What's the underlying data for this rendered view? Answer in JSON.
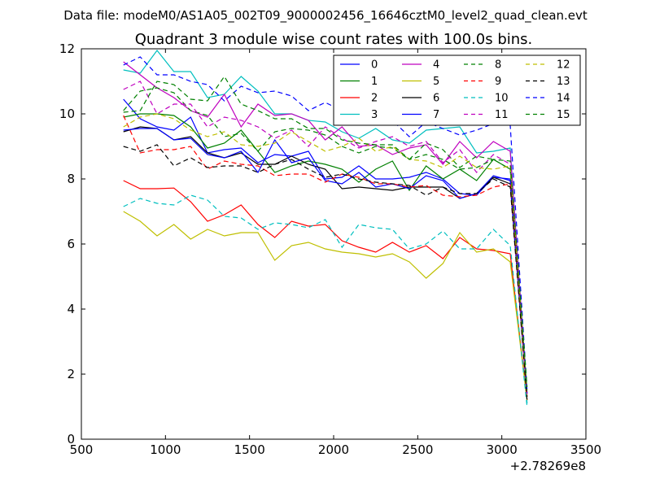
{
  "suptitle": "Data file: modeM0/AS1A05_002T09_9000002456_16646cztM0_level2_quad_clean.evt",
  "chart_data": {
    "type": "line",
    "title": "Quadrant 3 module wise count rates with 100.0s bins.",
    "xlabel": "",
    "ylabel": "",
    "x_offset_label": "+2.78269e8",
    "xlim": [
      500,
      3500
    ],
    "ylim": [
      0,
      12
    ],
    "x_ticks": [
      500,
      1000,
      1500,
      2000,
      2500,
      3000,
      3500
    ],
    "y_ticks": [
      0,
      2,
      4,
      6,
      8,
      10,
      12
    ],
    "grid": false,
    "legend_position": "top-right",
    "legend_columns": 4,
    "x": [
      750,
      850,
      950,
      1050,
      1150,
      1250,
      1350,
      1450,
      1550,
      1650,
      1750,
      1850,
      1950,
      2050,
      2150,
      2250,
      2350,
      2450,
      2550,
      2650,
      2750,
      2850,
      2950,
      3050,
      3150
    ],
    "series": [
      {
        "name": "0",
        "color": "#0000ff",
        "dash": "solid",
        "values": [
          10.45,
          9.85,
          9.6,
          9.5,
          9.9,
          8.8,
          8.9,
          8.95,
          8.5,
          8.75,
          8.7,
          8.85,
          8.0,
          8.05,
          8.4,
          8.0,
          8.0,
          8.05,
          8.2,
          8.0,
          7.55,
          7.5,
          8.05,
          8.0,
          1.3
        ]
      },
      {
        "name": "1",
        "color": "#008000",
        "dash": "solid",
        "values": [
          9.9,
          10.0,
          10.0,
          9.95,
          9.6,
          8.95,
          9.1,
          9.5,
          8.85,
          8.2,
          8.4,
          8.55,
          8.45,
          8.3,
          7.9,
          8.3,
          8.55,
          7.65,
          8.4,
          8.0,
          8.3,
          7.95,
          8.6,
          8.3,
          1.4
        ]
      },
      {
        "name": "2",
        "color": "#ff0000",
        "dash": "solid",
        "values": [
          7.95,
          7.7,
          7.7,
          7.72,
          7.3,
          6.7,
          6.9,
          7.2,
          6.6,
          6.2,
          6.7,
          6.55,
          6.6,
          6.1,
          5.9,
          5.75,
          6.05,
          5.75,
          5.95,
          5.55,
          6.2,
          5.85,
          5.8,
          5.7,
          1.2
        ]
      },
      {
        "name": "3",
        "color": "#00bfbf",
        "dash": "solid",
        "values": [
          11.35,
          11.25,
          11.95,
          11.3,
          11.3,
          10.5,
          10.6,
          11.15,
          10.7,
          10.0,
          10.0,
          9.8,
          9.75,
          9.45,
          9.25,
          9.55,
          9.2,
          9.1,
          9.5,
          9.55,
          9.6,
          8.8,
          8.85,
          8.95,
          1.1
        ]
      },
      {
        "name": "4",
        "color": "#bf00bf",
        "dash": "solid",
        "values": [
          11.6,
          11.2,
          10.8,
          10.5,
          10.1,
          9.9,
          10.6,
          9.6,
          10.3,
          9.95,
          10.0,
          9.8,
          9.2,
          9.6,
          9.0,
          9.05,
          8.75,
          8.95,
          9.05,
          8.45,
          9.15,
          8.65,
          9.15,
          8.85,
          1.4
        ]
      },
      {
        "name": "5",
        "color": "#bfbf00",
        "dash": "solid",
        "values": [
          7.0,
          6.7,
          6.25,
          6.6,
          6.15,
          6.45,
          6.25,
          6.35,
          6.35,
          5.5,
          5.95,
          6.05,
          5.85,
          5.75,
          5.7,
          5.6,
          5.7,
          5.45,
          4.95,
          5.4,
          6.35,
          5.75,
          5.85,
          5.45,
          1.2
        ]
      },
      {
        "name": "6",
        "color": "#000000",
        "dash": "solid",
        "values": [
          9.45,
          9.6,
          9.55,
          9.2,
          9.3,
          8.8,
          8.65,
          8.8,
          8.45,
          8.45,
          8.7,
          8.45,
          8.3,
          7.7,
          7.75,
          7.7,
          7.65,
          7.75,
          7.75,
          7.75,
          7.4,
          7.55,
          8.05,
          7.85,
          1.3
        ]
      },
      {
        "name": "7",
        "color": "#0000ff",
        "dash": "solid",
        "values": [
          9.5,
          9.55,
          9.55,
          9.2,
          9.25,
          8.75,
          8.65,
          8.85,
          8.2,
          9.2,
          8.5,
          8.65,
          7.95,
          7.85,
          8.2,
          7.75,
          7.85,
          7.7,
          8.1,
          7.95,
          7.4,
          7.55,
          8.1,
          7.95,
          1.4
        ]
      },
      {
        "name": "8",
        "color": "#008000",
        "dash": "dashed",
        "values": [
          10.1,
          10.7,
          10.8,
          10.65,
          10.1,
          9.95,
          9.3,
          9.4,
          8.85,
          9.45,
          9.55,
          9.5,
          9.35,
          9.0,
          8.8,
          9.0,
          8.95,
          8.6,
          9.1,
          8.9,
          8.35,
          8.7,
          8.6,
          8.3,
          1.5
        ]
      },
      {
        "name": "9",
        "color": "#ff0000",
        "dash": "dashed",
        "values": [
          9.95,
          8.8,
          8.9,
          8.9,
          9.0,
          8.3,
          8.55,
          8.45,
          8.4,
          8.1,
          8.15,
          8.15,
          7.9,
          8.15,
          8.05,
          7.85,
          7.85,
          7.75,
          7.8,
          7.5,
          7.45,
          7.5,
          7.75,
          7.85,
          1.3
        ]
      },
      {
        "name": "10",
        "color": "#00bfbf",
        "dash": "dashed",
        "values": [
          7.15,
          7.4,
          7.25,
          7.2,
          7.5,
          7.35,
          6.85,
          6.8,
          6.45,
          6.65,
          6.6,
          6.5,
          6.75,
          5.9,
          6.6,
          6.5,
          6.45,
          5.85,
          6.0,
          6.4,
          5.85,
          5.85,
          6.45,
          5.95,
          1.0
        ]
      },
      {
        "name": "11",
        "color": "#bf00bf",
        "dash": "dashed",
        "values": [
          10.75,
          11.0,
          10.0,
          10.3,
          10.3,
          9.6,
          9.9,
          9.8,
          9.6,
          9.25,
          9.5,
          9.0,
          9.6,
          9.25,
          8.95,
          9.15,
          9.3,
          9.0,
          9.15,
          8.5,
          8.9,
          8.2,
          8.75,
          8.45,
          1.3
        ]
      },
      {
        "name": "12",
        "color": "#bfbf00",
        "dash": "dashed",
        "values": [
          9.6,
          9.9,
          10.0,
          9.85,
          9.5,
          9.3,
          9.45,
          9.05,
          9.0,
          9.1,
          9.45,
          9.15,
          8.85,
          9.0,
          9.25,
          8.85,
          9.0,
          8.6,
          8.55,
          8.35,
          8.7,
          8.35,
          8.3,
          8.4,
          1.3
        ]
      },
      {
        "name": "13",
        "color": "#000000",
        "dash": "dashed",
        "values": [
          9.0,
          8.85,
          9.05,
          8.4,
          8.65,
          8.35,
          8.4,
          8.4,
          8.2,
          8.45,
          8.6,
          8.3,
          8.05,
          8.15,
          8.0,
          7.9,
          7.85,
          7.8,
          7.5,
          7.75,
          7.55,
          7.55,
          8.0,
          7.75,
          1.2
        ]
      },
      {
        "name": "14",
        "color": "#0000ff",
        "dash": "dashed",
        "values": [
          11.5,
          11.75,
          11.2,
          11.2,
          11.0,
          10.9,
          10.4,
          10.85,
          10.65,
          10.7,
          10.55,
          10.1,
          10.35,
          10.1,
          9.85,
          9.7,
          9.8,
          9.3,
          9.75,
          9.55,
          9.35,
          9.5,
          9.7,
          9.65,
          1.5
        ]
      },
      {
        "name": "15",
        "color": "#008000",
        "dash": "dashed",
        "values": [
          10.05,
          10.1,
          11.0,
          10.9,
          10.45,
          10.4,
          11.15,
          10.3,
          10.1,
          9.85,
          9.85,
          9.55,
          9.55,
          9.2,
          9.1,
          9.05,
          9.05,
          8.6,
          8.75,
          8.6,
          8.3,
          8.35,
          8.6,
          8.55,
          1.6
        ]
      }
    ]
  }
}
